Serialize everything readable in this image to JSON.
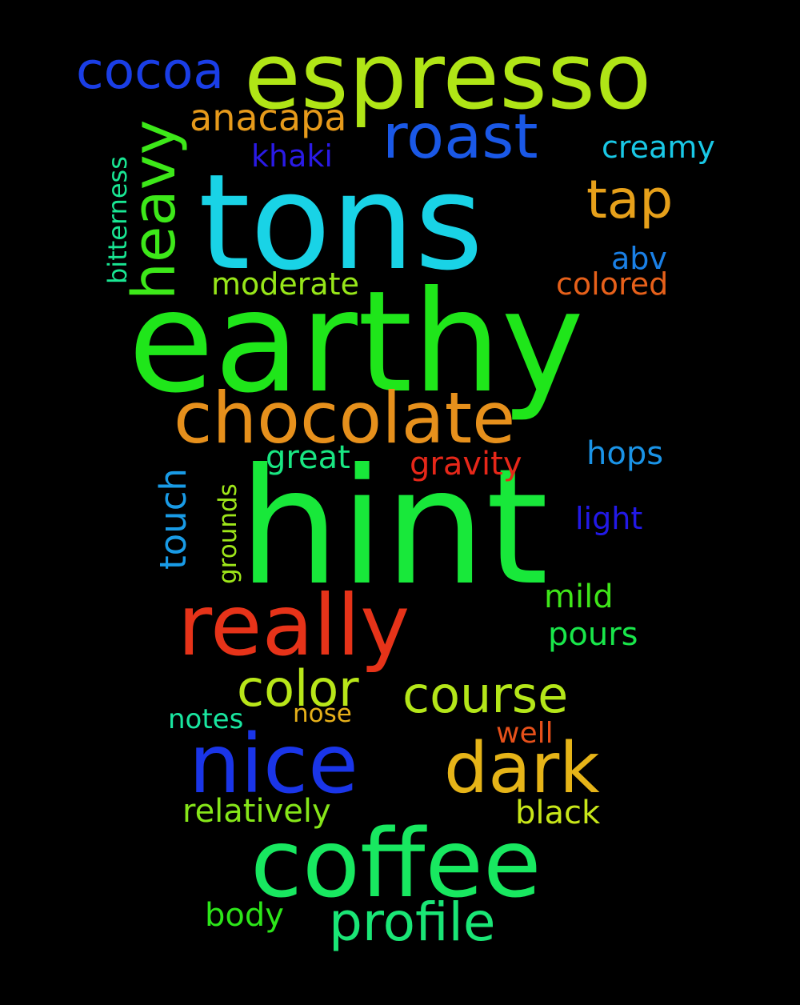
{
  "background": "#000000",
  "words": [
    {
      "text": "earthy",
      "color": "#1fe61a"
    },
    {
      "text": "hint",
      "color": "#18e83a"
    },
    {
      "text": "tons",
      "color": "#19d3e6"
    },
    {
      "text": "espresso",
      "color": "#b0e516"
    },
    {
      "text": "coffee",
      "color": "#18e860"
    },
    {
      "text": "really",
      "color": "#e63319"
    },
    {
      "text": "nice",
      "color": "#1a35e8"
    },
    {
      "text": "chocolate",
      "color": "#e6901c"
    },
    {
      "text": "dark",
      "color": "#e6b418"
    },
    {
      "text": "roast",
      "color": "#1a58e6"
    },
    {
      "text": "heavy",
      "color": "#3de819"
    },
    {
      "text": "course",
      "color": "#b4e619"
    },
    {
      "text": "profile",
      "color": "#1ae676"
    },
    {
      "text": "cocoa",
      "color": "#1a3ee6"
    },
    {
      "text": "color",
      "color": "#b8e619"
    },
    {
      "text": "tap",
      "color": "#e6a01a"
    },
    {
      "text": "anacapa",
      "color": "#e69a1b"
    },
    {
      "text": "touch",
      "color": "#199be6"
    },
    {
      "text": "moderate",
      "color": "#97e619"
    },
    {
      "text": "creamy",
      "color": "#19c8e6"
    },
    {
      "text": "hops",
      "color": "#1a93e6"
    },
    {
      "text": "khaki",
      "color": "#2a1ae6"
    },
    {
      "text": "gravity",
      "color": "#e62719"
    },
    {
      "text": "great",
      "color": "#19e682"
    },
    {
      "text": "colored",
      "color": "#e6601a"
    },
    {
      "text": "light",
      "color": "#2219e6"
    },
    {
      "text": "abv",
      "color": "#1a80e6"
    },
    {
      "text": "mild",
      "color": "#3fe619"
    },
    {
      "text": "pours",
      "color": "#19e64a"
    },
    {
      "text": "relatively",
      "color": "#86e619"
    },
    {
      "text": "black",
      "color": "#c8e619"
    },
    {
      "text": "body",
      "color": "#2ce619"
    },
    {
      "text": "notes",
      "color": "#19e6a0"
    },
    {
      "text": "nose",
      "color": "#e6b01a"
    },
    {
      "text": "well",
      "color": "#e6501a"
    },
    {
      "text": "grounds",
      "color": "#9ee619"
    },
    {
      "text": "bitterness",
      "color": "#19e693"
    }
  ]
}
